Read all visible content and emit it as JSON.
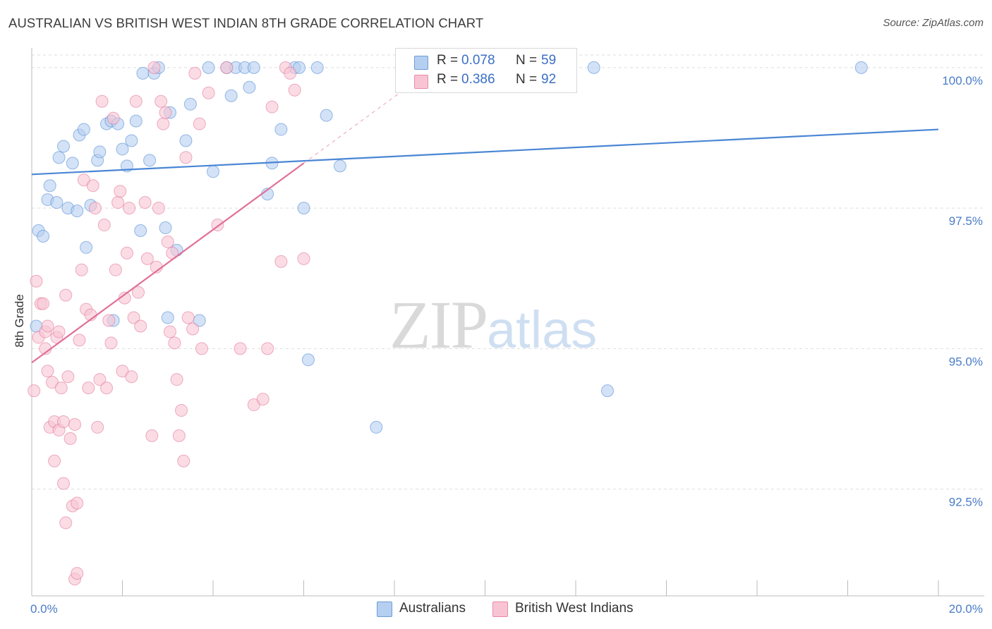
{
  "title": "AUSTRALIAN VS BRITISH WEST INDIAN 8TH GRADE CORRELATION CHART",
  "source": "Source: ZipAtlas.com",
  "watermark": {
    "zip": "ZIP",
    "atlas": "atlas"
  },
  "legend": {
    "r_label": "R =",
    "n_label": "N =",
    "rows": [
      {
        "name": "Australians",
        "r": "0.078",
        "n": "59",
        "fill": "#b5cff0",
        "stroke": "#6f9bd8"
      },
      {
        "name": "British West Indians",
        "r": "0.386",
        "n": "92",
        "fill": "#f8c4d4",
        "stroke": "#e88aa8"
      }
    ]
  },
  "bottom_legend": [
    "Australians",
    "British West Indians"
  ],
  "chart_data": {
    "type": "scatter",
    "title": "AUSTRALIAN VS BRITISH WEST INDIAN 8TH GRADE CORRELATION CHART",
    "xlabel": "",
    "ylabel": "8th Grade",
    "xlim": [
      0.0,
      20.0
    ],
    "ylim": [
      90.6,
      100.35
    ],
    "x_tick_labels": [
      "0.0%",
      "20.0%"
    ],
    "y_ticks": [
      100.0,
      97.5,
      95.0,
      92.5
    ],
    "y_tick_labels": [
      "100.0%",
      "97.5%",
      "95.0%",
      "92.5%"
    ],
    "grid": true,
    "series": [
      {
        "name": "Australians",
        "color": "#4a86d4",
        "fill": "#b5cff0",
        "R": 0.078,
        "N": 59,
        "trend": {
          "x": [
            0.0,
            20.0
          ],
          "y": [
            98.1,
            98.9
          ]
        },
        "points": [
          [
            0.1,
            95.4
          ],
          [
            0.15,
            97.1
          ],
          [
            0.25,
            97.0
          ],
          [
            0.35,
            97.65
          ],
          [
            0.4,
            97.9
          ],
          [
            0.55,
            97.6
          ],
          [
            0.6,
            98.4
          ],
          [
            0.7,
            98.6
          ],
          [
            0.8,
            97.5
          ],
          [
            0.9,
            98.3
          ],
          [
            1.0,
            97.45
          ],
          [
            1.05,
            98.8
          ],
          [
            1.15,
            98.9
          ],
          [
            1.2,
            96.8
          ],
          [
            1.3,
            97.55
          ],
          [
            1.45,
            98.35
          ],
          [
            1.5,
            98.5
          ],
          [
            1.65,
            99.0
          ],
          [
            1.75,
            99.05
          ],
          [
            1.8,
            95.5
          ],
          [
            1.9,
            99.0
          ],
          [
            2.0,
            98.55
          ],
          [
            2.1,
            98.25
          ],
          [
            2.2,
            98.7
          ],
          [
            2.3,
            99.05
          ],
          [
            2.4,
            97.1
          ],
          [
            2.45,
            99.9
          ],
          [
            2.6,
            98.35
          ],
          [
            2.7,
            99.9
          ],
          [
            2.8,
            100.0
          ],
          [
            2.95,
            97.15
          ],
          [
            3.0,
            95.55
          ],
          [
            3.05,
            99.2
          ],
          [
            3.2,
            96.75
          ],
          [
            3.4,
            98.7
          ],
          [
            3.5,
            99.35
          ],
          [
            3.7,
            95.5
          ],
          [
            3.9,
            100.0
          ],
          [
            4.0,
            98.15
          ],
          [
            4.3,
            100.0
          ],
          [
            4.4,
            99.5
          ],
          [
            4.5,
            100.0
          ],
          [
            4.7,
            100.0
          ],
          [
            4.8,
            99.65
          ],
          [
            4.9,
            100.0
          ],
          [
            5.2,
            97.75
          ],
          [
            5.3,
            98.3
          ],
          [
            5.5,
            98.9
          ],
          [
            5.8,
            100.0
          ],
          [
            5.9,
            100.0
          ],
          [
            6.0,
            97.5
          ],
          [
            6.1,
            94.8
          ],
          [
            6.3,
            100.0
          ],
          [
            6.5,
            99.15
          ],
          [
            6.8,
            98.25
          ],
          [
            7.6,
            93.6
          ],
          [
            12.4,
            100.0
          ],
          [
            12.7,
            94.25
          ],
          [
            18.3,
            100.0
          ]
        ]
      },
      {
        "name": "British West Indians",
        "color": "#e07098",
        "fill": "#f8c4d4",
        "R": 0.386,
        "N": 92,
        "trend": {
          "x": [
            0.0,
            6.0
          ],
          "y": [
            94.75,
            98.3
          ]
        },
        "trend_extension": {
          "x": [
            6.0,
            8.2
          ],
          "y": [
            98.3,
            99.6
          ]
        },
        "points": [
          [
            0.05,
            94.25
          ],
          [
            0.1,
            96.2
          ],
          [
            0.15,
            95.2
          ],
          [
            0.2,
            95.8
          ],
          [
            0.25,
            95.8
          ],
          [
            0.3,
            95.3
          ],
          [
            0.3,
            95.0
          ],
          [
            0.35,
            94.6
          ],
          [
            0.35,
            95.4
          ],
          [
            0.4,
            93.6
          ],
          [
            0.45,
            94.4
          ],
          [
            0.5,
            93.7
          ],
          [
            0.5,
            93.0
          ],
          [
            0.55,
            95.2
          ],
          [
            0.6,
            95.3
          ],
          [
            0.65,
            94.3
          ],
          [
            0.6,
            93.55
          ],
          [
            0.7,
            93.7
          ],
          [
            0.7,
            92.6
          ],
          [
            0.75,
            91.9
          ],
          [
            0.75,
            95.95
          ],
          [
            0.8,
            94.5
          ],
          [
            0.85,
            93.4
          ],
          [
            0.9,
            92.2
          ],
          [
            0.95,
            93.65
          ],
          [
            0.95,
            90.9
          ],
          [
            1.0,
            91.0
          ],
          [
            1.0,
            92.25
          ],
          [
            1.05,
            95.15
          ],
          [
            1.1,
            96.4
          ],
          [
            1.15,
            98.0
          ],
          [
            1.2,
            95.7
          ],
          [
            1.25,
            94.3
          ],
          [
            1.3,
            95.6
          ],
          [
            1.35,
            97.9
          ],
          [
            1.4,
            97.5
          ],
          [
            1.45,
            93.6
          ],
          [
            1.5,
            94.45
          ],
          [
            1.55,
            99.4
          ],
          [
            1.6,
            97.2
          ],
          [
            1.65,
            94.3
          ],
          [
            1.7,
            95.5
          ],
          [
            1.75,
            95.1
          ],
          [
            1.8,
            99.1
          ],
          [
            1.85,
            96.4
          ],
          [
            1.9,
            97.6
          ],
          [
            1.95,
            97.8
          ],
          [
            2.0,
            94.6
          ],
          [
            2.05,
            95.9
          ],
          [
            2.1,
            96.7
          ],
          [
            2.15,
            97.5
          ],
          [
            2.2,
            94.5
          ],
          [
            2.25,
            95.55
          ],
          [
            2.3,
            99.4
          ],
          [
            2.35,
            96.0
          ],
          [
            2.4,
            95.4
          ],
          [
            2.5,
            97.6
          ],
          [
            2.55,
            96.6
          ],
          [
            2.65,
            93.45
          ],
          [
            2.7,
            100.0
          ],
          [
            2.75,
            96.45
          ],
          [
            2.8,
            97.5
          ],
          [
            2.85,
            99.4
          ],
          [
            2.9,
            99.0
          ],
          [
            2.95,
            99.2
          ],
          [
            3.0,
            96.9
          ],
          [
            3.05,
            95.3
          ],
          [
            3.1,
            96.7
          ],
          [
            3.15,
            95.1
          ],
          [
            3.2,
            94.45
          ],
          [
            3.25,
            93.45
          ],
          [
            3.3,
            93.9
          ],
          [
            3.35,
            93.0
          ],
          [
            3.4,
            98.4
          ],
          [
            3.45,
            95.55
          ],
          [
            3.55,
            95.35
          ],
          [
            3.6,
            99.9
          ],
          [
            3.7,
            99.0
          ],
          [
            3.75,
            95.0
          ],
          [
            3.9,
            99.55
          ],
          [
            4.1,
            97.2
          ],
          [
            4.3,
            100.0
          ],
          [
            4.6,
            95.0
          ],
          [
            4.9,
            94.0
          ],
          [
            5.1,
            94.1
          ],
          [
            5.2,
            95.0
          ],
          [
            5.3,
            99.3
          ],
          [
            5.5,
            96.55
          ],
          [
            5.6,
            100.0
          ],
          [
            5.7,
            99.9
          ],
          [
            5.8,
            99.6
          ],
          [
            6.0,
            96.6
          ]
        ]
      }
    ]
  }
}
